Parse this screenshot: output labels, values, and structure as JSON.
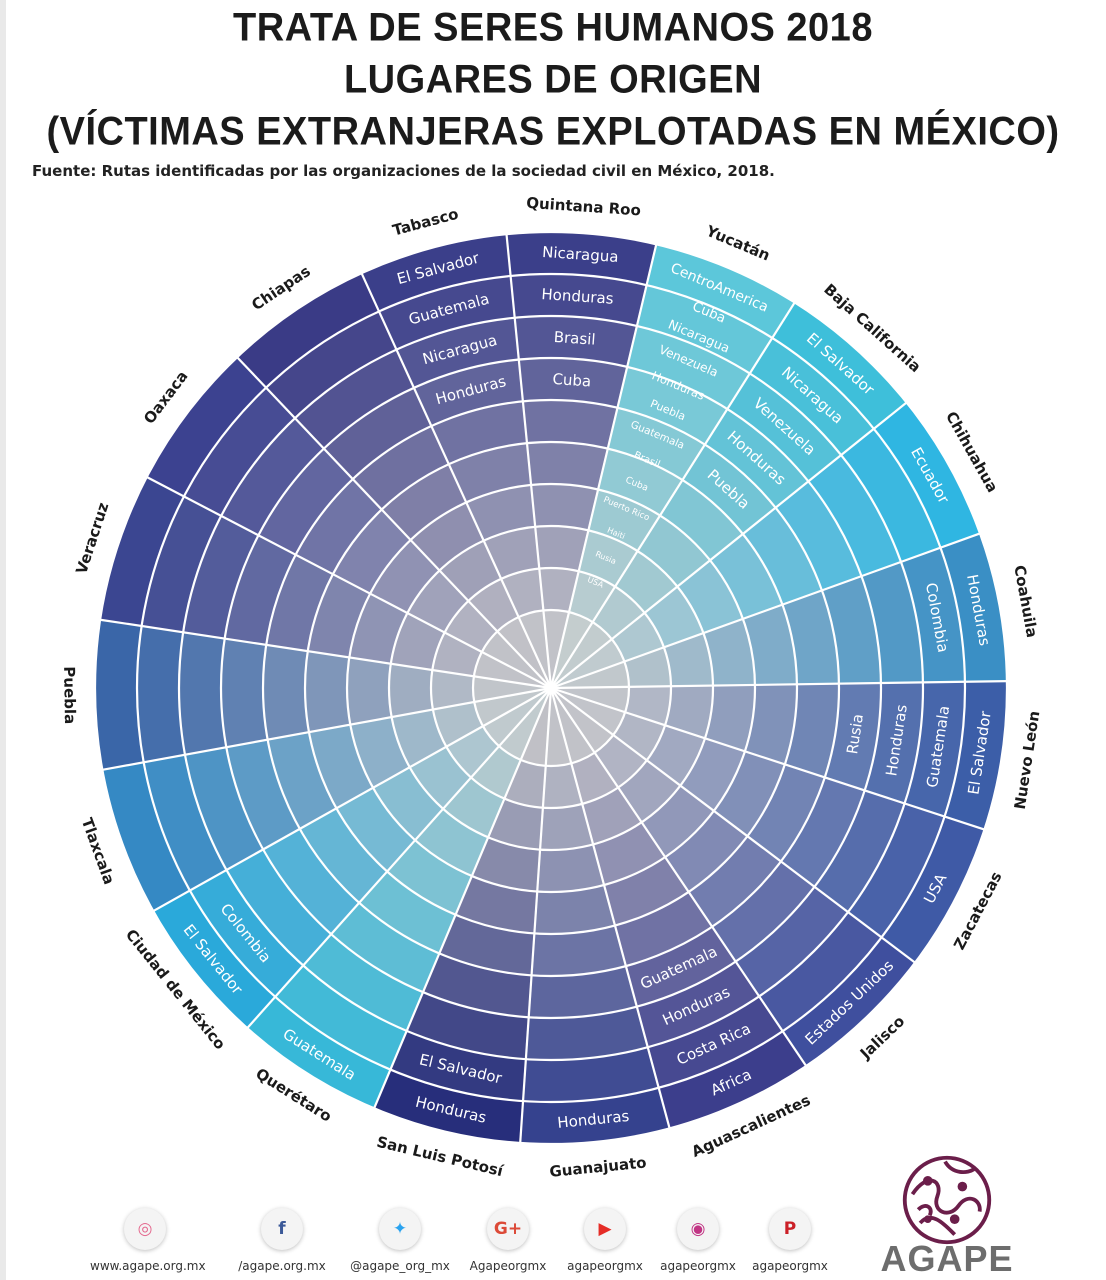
{
  "title_lines": [
    "TRATA DE SERES HUMANOS 2018",
    "LUGARES DE ORIGEN",
    "(VÍCTIMAS EXTRANJERAS EXPLOTADAS EN MÉXICO)"
  ],
  "source": "Fuente: Rutas identificadas por las organizaciones de la sociedad civil en México, 2018.",
  "chart_data": {
    "type": "table",
    "title": "TRATA DE SERES HUMANOS 2018 LUGARES DE ORIGEN (VÍCTIMAS EXTRANJERAS EXPLOTADAS EN MÉXICO)",
    "destinations": [
      {
        "state": "Quintana Roo",
        "origins": [
          "Nicaragua",
          "Honduras",
          "Brasil",
          "Cuba"
        ],
        "color": "#3b3f8a"
      },
      {
        "state": "Yucatán",
        "origins": [
          "CentroAmerica",
          "Cuba",
          "Nicaragua",
          "Venezuela",
          "Honduras",
          "Puebla",
          "Guatemala",
          "Brasil",
          "Cuba",
          "Puerto Rico",
          "Haiti",
          "Rusia",
          "USA"
        ],
        "color": "#5cc7da"
      },
      {
        "state": "Baja California",
        "origins": [
          "El Salvador",
          "Nicaragua",
          "Venezuela",
          "Honduras",
          "Puebla"
        ],
        "color": "#3ebfda"
      },
      {
        "state": "Chihuahua",
        "origins": [
          "Ecuador"
        ],
        "color": "#2fb6e2"
      },
      {
        "state": "Coahuila",
        "origins": [
          "Honduras",
          "Colombia"
        ],
        "color": "#3a8fc5"
      },
      {
        "state": "Nuevo León",
        "origins": [
          "El Salvador",
          "Guatemala",
          "Honduras",
          "Rusia"
        ],
        "color": "#3c5ea8"
      },
      {
        "state": "Zacatecas",
        "origins": [
          "USA"
        ],
        "color": "#3f5aa6"
      },
      {
        "state": "Jalisco",
        "origins": [
          "Estados Unidos"
        ],
        "color": "#3f4f9e"
      },
      {
        "state": "Aguascalientes",
        "origins": [
          "Africa",
          "Costa Rica",
          "Honduras",
          "Guatemala"
        ],
        "color": "#3c3e8c"
      },
      {
        "state": "Guanajuato",
        "origins": [
          "Honduras"
        ],
        "color": "#35428e"
      },
      {
        "state": "San Luis Potosí",
        "origins": [
          "Honduras",
          "El Salvador"
        ],
        "color": "#272e7b"
      },
      {
        "state": "Querétaro",
        "origins": [
          "Guatemala"
        ],
        "color": "#37b8d8"
      },
      {
        "state": "Ciudad de México",
        "origins": [
          "El Salvador",
          "Colombia"
        ],
        "color": "#2aa9da"
      },
      {
        "state": "Tlaxcala",
        "origins": [],
        "color": "#3589c4"
      },
      {
        "state": "Puebla",
        "origins": [],
        "color": "#3a66a8"
      },
      {
        "state": "Veracruz",
        "origins": [],
        "color": "#3b4691"
      },
      {
        "state": "Oaxaca",
        "origins": [],
        "color": "#3c4290"
      },
      {
        "state": "Chiapas",
        "origins": [],
        "color": "#3a3b86"
      },
      {
        "state": "Tabasco",
        "origins": [
          "El Salvador",
          "Guatemala",
          "Nicaragua",
          "Honduras"
        ],
        "color": "#3b3f8a"
      }
    ]
  },
  "footer": {
    "socials": [
      {
        "icon": "dribbble-icon",
        "glyph": "◎",
        "color": "#e46a8f",
        "handle": "www.agape.org.mx"
      },
      {
        "icon": "facebook-icon",
        "glyph": "f",
        "color": "#3b5998",
        "handle": "/agape.org.mx"
      },
      {
        "icon": "twitter-icon",
        "glyph": "✦",
        "color": "#2aa3ef",
        "handle": "@agape_org_mx"
      },
      {
        "icon": "google-plus-icon",
        "glyph": "G+",
        "color": "#dc4a38",
        "handle": "Agapeorgmx"
      },
      {
        "icon": "youtube-icon",
        "glyph": "▶",
        "color": "#e52d27",
        "handle": "agapeorgmx"
      },
      {
        "icon": "instagram-icon",
        "glyph": "◉",
        "color": "#c13584",
        "handle": "agapeorgmx"
      },
      {
        "icon": "pinterest-icon",
        "glyph": "P",
        "color": "#cb2027",
        "handle": "agapeorgmx"
      }
    ],
    "logo_text": "AGAPE",
    "logo_color": "#6b1e4a"
  }
}
